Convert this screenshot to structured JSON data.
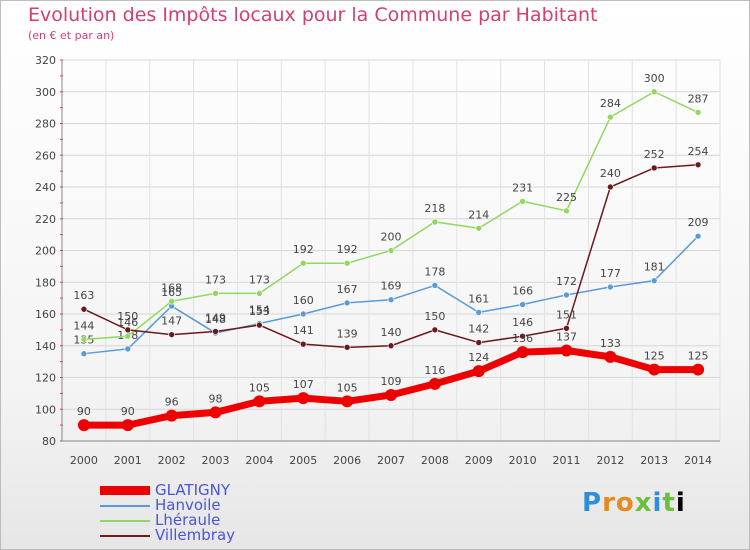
{
  "title": "Evolution des Impôts locaux pour la Commune par Habitant",
  "subtitle": "(en € et par an)",
  "logo": [
    "P",
    "r",
    "o",
    "x",
    "i",
    "t",
    "i"
  ],
  "chart_data": {
    "type": "line",
    "x": [
      2000,
      2001,
      2002,
      2003,
      2004,
      2005,
      2006,
      2007,
      2008,
      2009,
      2010,
      2011,
      2012,
      2013,
      2014
    ],
    "ylim": [
      80,
      320
    ],
    "yticks": [
      80,
      100,
      120,
      140,
      160,
      180,
      200,
      220,
      240,
      260,
      280,
      300,
      320
    ],
    "grid": true,
    "legend_position": "bottom-left",
    "series": [
      {
        "name": "Hanvoile",
        "color": "#5b9bd5",
        "values": [
          135,
          138,
          165,
          148,
          154,
          160,
          167,
          169,
          178,
          161,
          166,
          172,
          177,
          181,
          209
        ]
      },
      {
        "name": "Lhéraule",
        "color": "#90d860",
        "values": [
          144,
          146,
          168,
          173,
          173,
          192,
          192,
          200,
          218,
          214,
          231,
          225,
          284,
          300,
          287
        ]
      },
      {
        "name": "Villembray",
        "color": "#6b1a1a",
        "values": [
          163,
          150,
          147,
          149,
          153,
          141,
          139,
          140,
          150,
          142,
          146,
          151,
          240,
          252,
          254
        ]
      },
      {
        "name": "GLATIGNY",
        "color": "#ee0000",
        "values": [
          90,
          90,
          96,
          98,
          105,
          107,
          105,
          109,
          116,
          124,
          136,
          137,
          133,
          125,
          125
        ]
      }
    ]
  }
}
